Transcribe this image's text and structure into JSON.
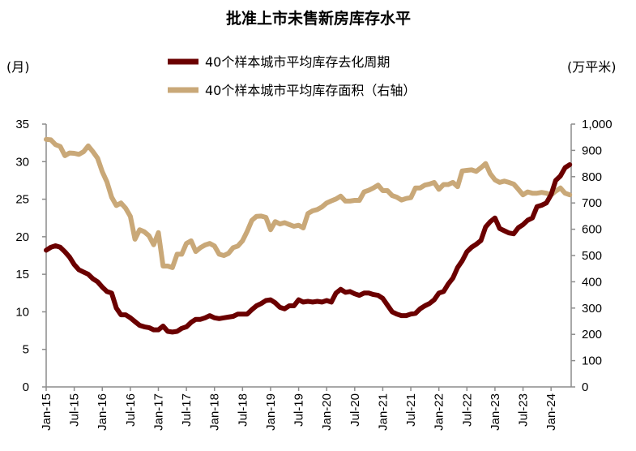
{
  "chart_data": {
    "type": "line",
    "title": "批准上市未售新房库存水平",
    "ylabel": "(月)",
    "y2label": "(万平米)",
    "ylim": [
      0,
      35
    ],
    "y2lim": [
      0,
      1000
    ],
    "yticks": [
      "0",
      "5",
      "10",
      "15",
      "20",
      "25",
      "30",
      "35"
    ],
    "y2ticks": [
      "0",
      "100",
      "200",
      "300",
      "400",
      "500",
      "600",
      "700",
      "800",
      "900",
      "1,000"
    ],
    "xtick_labels": [
      "Jan-15",
      "Jul-15",
      "Jan-16",
      "Jul-16",
      "Jan-17",
      "Jul-17",
      "Jan-18",
      "Jul-18",
      "Jan-19",
      "Jul-19",
      "Jan-20",
      "Jul-20",
      "Jan-21",
      "Jul-21",
      "Jan-22",
      "Jul-22",
      "Jan-23",
      "Jul-23",
      "Jan-24"
    ],
    "x_start": "Jan-15",
    "x_end": "May-24",
    "frequency": "monthly",
    "grid": false,
    "legend_position": "top-center",
    "series": [
      {
        "name": "40个样本城市平均库存去化周期",
        "axis": "left",
        "color": "#6b0000",
        "values": [
          18.2,
          18.6,
          18.8,
          18.6,
          18.0,
          17.3,
          16.3,
          15.6,
          15.3,
          15.0,
          14.4,
          14.0,
          13.3,
          12.7,
          12.5,
          10.5,
          9.6,
          9.6,
          9.2,
          8.7,
          8.2,
          8.0,
          7.9,
          7.6,
          7.6,
          8.1,
          7.4,
          7.3,
          7.4,
          7.8,
          8.0,
          8.6,
          9.0,
          9.0,
          9.2,
          9.5,
          9.2,
          9.1,
          9.2,
          9.3,
          9.4,
          9.7,
          9.7,
          9.7,
          10.3,
          10.8,
          11.1,
          11.5,
          11.6,
          11.2,
          10.6,
          10.4,
          10.8,
          10.8,
          11.6,
          11.3,
          11.4,
          11.3,
          11.4,
          11.3,
          11.5,
          11.3,
          12.5,
          13.0,
          12.6,
          12.7,
          12.4,
          12.2,
          12.5,
          12.5,
          12.3,
          12.2,
          11.8,
          10.9,
          10.0,
          9.7,
          9.5,
          9.5,
          9.7,
          9.8,
          10.4,
          10.8,
          11.1,
          11.6,
          12.5,
          12.7,
          13.7,
          14.5,
          15.9,
          16.8,
          18.0,
          18.6,
          19.0,
          19.5,
          21.3,
          22.0,
          22.5,
          21.1,
          20.8,
          20.5,
          20.4,
          21.2,
          21.6,
          22.2,
          22.5,
          24.0,
          24.2,
          24.5,
          25.6,
          27.5,
          28.1,
          29.2,
          29.6
        ]
      },
      {
        "name": "40个样本城市平均库存面积（右轴）",
        "axis": "right",
        "color": "#c9a878",
        "values": [
          942,
          940,
          922,
          915,
          880,
          890,
          889,
          885,
          895,
          917,
          895,
          870,
          819,
          780,
          722,
          690,
          700,
          680,
          649,
          562,
          598,
          590,
          575,
          541,
          587,
          460,
          460,
          454,
          505,
          505,
          546,
          556,
          515,
          530,
          540,
          546,
          536,
          505,
          500,
          508,
          530,
          536,
          556,
          592,
          634,
          649,
          650,
          645,
          598,
          629,
          620,
          625,
          618,
          611,
          615,
          605,
          660,
          670,
          675,
          685,
          700,
          708,
          715,
          726,
          707,
          707,
          710,
          710,
          742,
          748,
          757,
          768,
          747,
          747,
          728,
          722,
          711,
          717,
          720,
          757,
          757,
          768,
          772,
          778,
          752,
          770,
          770,
          778,
          762,
          822,
          824,
          826,
          820,
          834,
          850,
          811,
          788,
          778,
          783,
          778,
          772,
          752,
          731,
          742,
          737,
          737,
          740,
          737,
          731,
          745,
          757,
          737,
          731
        ]
      }
    ]
  }
}
